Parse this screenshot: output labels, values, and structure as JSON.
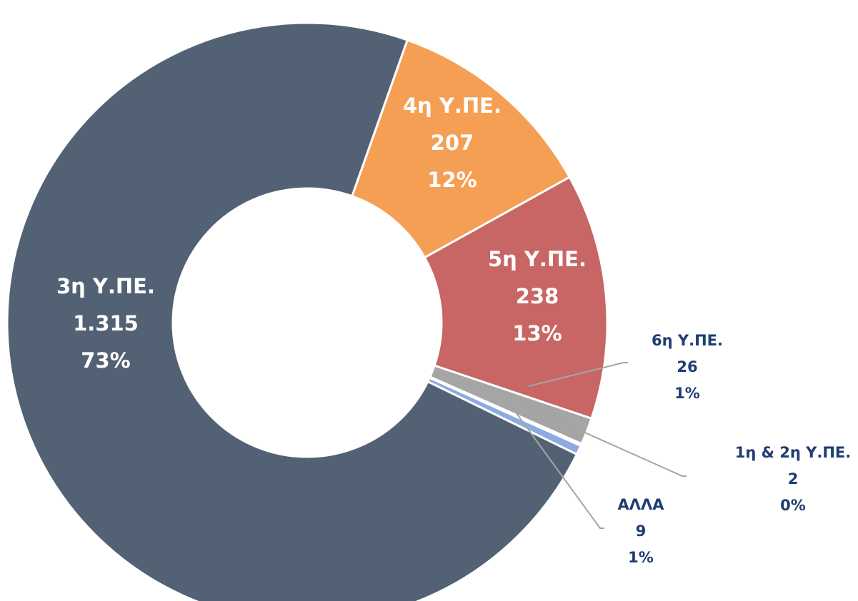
{
  "chart_data": {
    "type": "donut",
    "categories": [
      "4η Υ.ΠΕ.",
      "5η Υ.ΠΕ.",
      "6η Υ.ΠΕ.",
      "1η & 2η Υ.ΠΕ.",
      "ΑΛΛΑ",
      "3η Υ.ΠΕ."
    ],
    "values": [
      207,
      238,
      26,
      2,
      9,
      1315
    ],
    "value_labels": [
      "207",
      "238",
      "26",
      "2",
      "9",
      "1.315"
    ],
    "percent_labels": [
      "12%",
      "13%",
      "1%",
      "0%",
      "1%",
      "73%"
    ],
    "colors": [
      "#f59f55",
      "#c76664",
      "#a5a5a5",
      "#5b7fc4",
      "#8eaae2",
      "#536175"
    ]
  }
}
